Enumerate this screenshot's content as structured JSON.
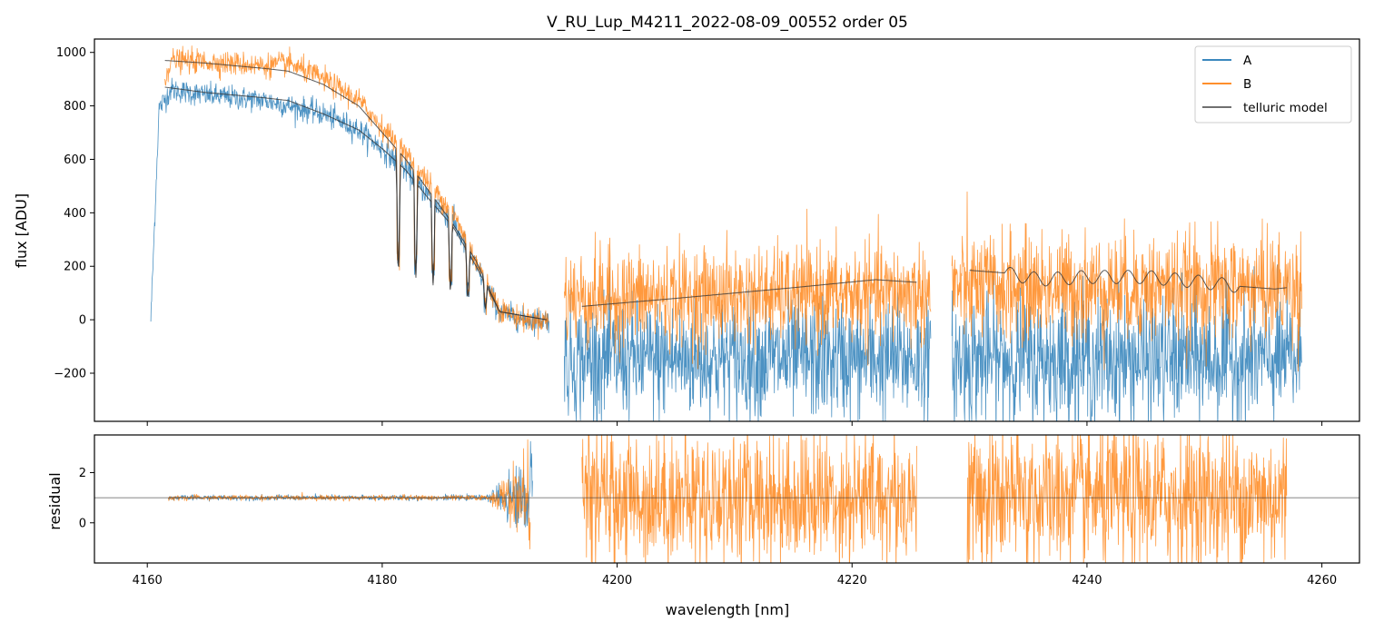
{
  "chart_data": [
    {
      "type": "line",
      "panel": "flux",
      "title": "V_RU_Lup_M4211_2022-08-09_00552  order 05",
      "xlabel": "",
      "ylabel": "flux [ADU]",
      "xlim": [
        4155.5,
        4263.2
      ],
      "ylim": [
        -380,
        1050
      ],
      "yticks": [
        1000,
        800,
        600,
        400,
        200,
        0,
        -200
      ],
      "ytick_labels": [
        "1000",
        "800",
        "600",
        "400",
        "200",
        "0",
        "−200"
      ],
      "xticks": [
        4160,
        4180,
        4200,
        4220,
        4240,
        4260
      ],
      "legend": {
        "position": "top-right",
        "entries": [
          "A",
          "B",
          "telluric model"
        ]
      },
      "colors": {
        "A": "#1f77b4",
        "B": "#ff7f0e",
        "telluric model": "#333333"
      },
      "series": [
        {
          "name": "A",
          "segments": [
            {
              "x_range": [
                4160.3,
                4194.2
              ],
              "x": [
                4160.3,
                4161.0,
                4162.0,
                4165.0,
                4170.0,
                4172.0,
                4175.0,
                4178.0,
                4180.0,
                4182.0,
                4184.0,
                4186.0,
                4188.0,
                4190.0,
                4192.0,
                4194.2
              ],
              "y": [
                0,
                790,
                860,
                840,
                820,
                800,
                770,
                710,
                640,
                560,
                460,
                370,
                200,
                30,
                0,
                0
              ],
              "noise": 22
            },
            {
              "x_range": [
                4195.5,
                4226.7
              ],
              "x": [
                4195.5,
                4226.7
              ],
              "y": [
                -150,
                -150
              ],
              "noise": 110
            },
            {
              "x_range": [
                4228.5,
                4258.3
              ],
              "x": [
                4228.5,
                4258.3
              ],
              "y": [
                -150,
                -150
              ],
              "noise": 120
            }
          ]
        },
        {
          "name": "B",
          "segments": [
            {
              "x_range": [
                4161.5,
                4194.2
              ],
              "x": [
                4161.5,
                4162.0,
                4165.0,
                4170.0,
                4172.0,
                4175.0,
                4178.0,
                4180.0,
                4182.0,
                4184.0,
                4186.0,
                4188.0,
                4190.0,
                4192.0,
                4194.2
              ],
              "y": [
                900,
                970,
                965,
                950,
                960,
                900,
                820,
                720,
                620,
                510,
                400,
                220,
                40,
                0,
                0
              ],
              "noise": 22
            },
            {
              "x_range": [
                4195.5,
                4226.7
              ],
              "x": [
                4195.5,
                4226.7
              ],
              "y": [
                80,
                100
              ],
              "noise": 90
            },
            {
              "x_range": [
                4228.5,
                4258.3
              ],
              "x": [
                4228.5,
                4258.3
              ],
              "y": [
                120,
                120
              ],
              "noise": 100
            }
          ]
        },
        {
          "name": "telluric model",
          "segments": [
            {
              "x": [
                4161.5,
                4165.0,
                4170.0,
                4172.0,
                4175.0,
                4178.0,
                4180.0,
                4182.0,
                4184.0,
                4186.0,
                4188.0,
                4190.0,
                4194.0
              ],
              "y": [
                970,
                960,
                940,
                930,
                880,
                800,
                700,
                600,
                480,
                360,
                220,
                30,
                0
              ]
            },
            {
              "x": [
                4161.5,
                4165.0,
                4170.0,
                4172.0,
                4175.0,
                4178.0,
                4180.0,
                4182.0,
                4184.0,
                4186.0,
                4188.0,
                4190.0,
                4194.0
              ],
              "y": [
                870,
                850,
                830,
                820,
                770,
                710,
                640,
                560,
                450,
                350,
                200,
                30,
                0
              ]
            },
            {
              "x": [
                4197.0,
                4205.0,
                4215.0,
                4222.0,
                4225.5
              ],
              "y": [
                50,
                80,
                120,
                150,
                140
              ]
            },
            {
              "x": [
                4230.0,
                4233.0,
                4236.0,
                4240.0,
                4245.0,
                4250.0,
                4253.0,
                4256.0,
                4257.0
              ],
              "y": [
                185,
                175,
                150,
                160,
                160,
                140,
                125,
                115,
                120
              ]
            }
          ]
        }
      ]
    },
    {
      "type": "line",
      "panel": "residual",
      "title": "",
      "xlabel": "wavelength [nm]",
      "ylabel": "residual",
      "xlim": [
        4155.5,
        4263.2
      ],
      "ylim": [
        -1.6,
        3.5
      ],
      "yticks": [
        2,
        0
      ],
      "ytick_labels": [
        "2",
        "0"
      ],
      "xticks": [
        4160,
        4180,
        4200,
        4220,
        4240,
        4260
      ],
      "xtick_labels": [
        "4160",
        "4180",
        "4200",
        "4220",
        "4240",
        "4260"
      ],
      "reference_line": 1.0,
      "series": [
        {
          "name": "A",
          "segments": [
            {
              "x_range": [
                4161.8,
                4192.8
              ],
              "y_center": 1.0,
              "noise": 0.05
            }
          ]
        },
        {
          "name": "B",
          "segments": [
            {
              "x_range": [
                4161.8,
                4192.6
              ],
              "y_center": 1.0,
              "noise": 0.05
            },
            {
              "x_range": [
                4197.0,
                4225.5
              ],
              "y_center": 1.0,
              "noise": 1.3
            },
            {
              "x_range": [
                4229.8,
                4257.0
              ],
              "y_center": 1.0,
              "noise": 1.4
            }
          ]
        }
      ]
    }
  ]
}
